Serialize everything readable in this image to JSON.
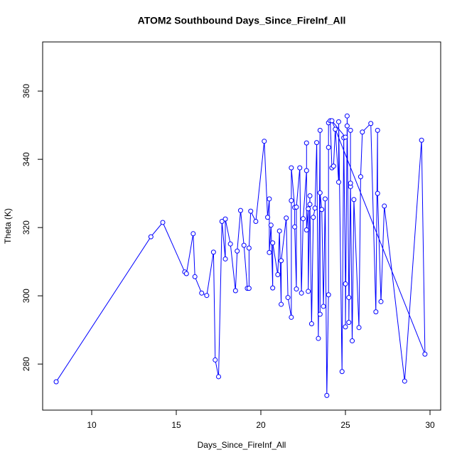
{
  "chart_data": {
    "type": "scatter-line",
    "title": "ATOM2 Southbound Days_Since_FireInf_All",
    "x_label": "Days_Since_FireInf_All",
    "y_label": "Theta (K)",
    "color": "#0000ff",
    "xlim": [
      7.1,
      30.63
    ],
    "ylim": [
      266.5,
      374.4
    ],
    "xticks": [
      10,
      15,
      20,
      25,
      30
    ],
    "yticks": [
      280,
      300,
      320,
      340,
      360
    ],
    "x": [
      7.9,
      13.5,
      14.2,
      15.5,
      15.6,
      16,
      16.1,
      16.5,
      16.8,
      17.2,
      17.3,
      17.5,
      17.7,
      17.9,
      17.9,
      18.2,
      18.5,
      18.6,
      18.8,
      19,
      19.2,
      19.3,
      19.3,
      19.4,
      19.7,
      20.2,
      20.4,
      20.5,
      20.5,
      20.6,
      20.7,
      20.7,
      21,
      21.1,
      21.2,
      21.2,
      21.5,
      21.6,
      21.8,
      21.8,
      21.8,
      22,
      22,
      22.1,
      22.1,
      22.3,
      22.4,
      22.5,
      22.7,
      22.7,
      22.7,
      22.8,
      22.8,
      22.9,
      22.9,
      23,
      23.1,
      23.2,
      23.3,
      23.4,
      23.5,
      23.5,
      23.5,
      23.6,
      23.7,
      23.8,
      23.9,
      24,
      24,
      24,
      24.1,
      24.2,
      24.3,
      24.4,
      24.6,
      24.6,
      24.8,
      24.9,
      25,
      25,
      25.1,
      25.1,
      25.2,
      25.2,
      25.3,
      25.3,
      25.3,
      25.4,
      25.5,
      25.8,
      25.9,
      26,
      26.5,
      26.8,
      26.9,
      26.9,
      27.1,
      27.3,
      28.5,
      29.5,
      29.7,
      24.2,
      25
    ],
    "y": [
      274.8,
      317.3,
      321.5,
      307,
      306.5,
      318.2,
      305.6,
      300.8,
      300.1,
      312.8,
      281.2,
      276.3,
      321.8,
      310.8,
      322.5,
      315.2,
      301.5,
      313.1,
      325,
      314.8,
      302.2,
      302.2,
      314,
      324.8,
      321.8,
      345.3,
      323,
      328.4,
      312.7,
      320.7,
      302.3,
      315.5,
      306.2,
      319,
      297.5,
      310.3,
      322.8,
      299.5,
      293.7,
      327.9,
      337.5,
      325.9,
      320.2,
      302,
      326,
      337.5,
      300.8,
      322.6,
      336.7,
      344.8,
      319.3,
      325.5,
      301.3,
      329.3,
      326.8,
      291.8,
      323,
      325.7,
      344.9,
      287.5,
      348.5,
      294.6,
      330.2,
      325.3,
      296.9,
      328.4,
      270.8,
      300.3,
      343.5,
      350.7,
      351.3,
      337.5,
      338,
      348.8,
      333.3,
      351,
      277.8,
      346.3,
      303.5,
      290.9,
      349.8,
      352.7,
      299.5,
      292.2,
      332,
      348.5,
      333,
      286.8,
      328.2,
      290.7,
      334.9,
      348,
      350.5,
      295.3,
      348.5,
      330,
      298.3,
      326.3,
      275,
      345.6,
      282.9,
      351.3,
      346.5
    ]
  }
}
